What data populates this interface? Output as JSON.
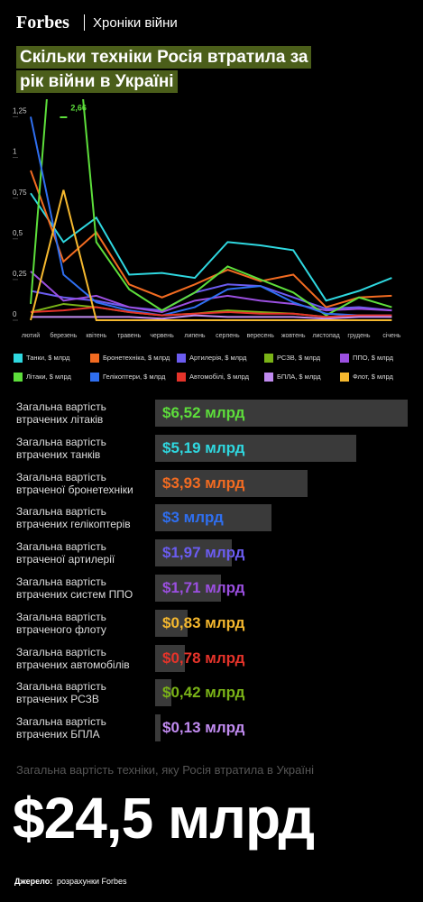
{
  "header": {
    "brand": "Forbes",
    "section": "Хроніки війни",
    "title": "Скільки техніки Росія втратила за рік війни в Україні"
  },
  "chart_data": [
    {
      "type": "line",
      "categories": [
        "лютий",
        "березень",
        "квітень",
        "травень",
        "червень",
        "липень",
        "серпень",
        "вересень",
        "жовтень",
        "листопад",
        "грудень",
        "січень"
      ],
      "ylim": [
        0,
        1.33
      ],
      "yticks": [
        0,
        {
          "value": 0.25,
          "label": "0,25"
        },
        {
          "value": 0.5,
          "label": "0,5"
        },
        {
          "value": 0.75,
          "label": "0,75"
        },
        1,
        {
          "value": 1.25,
          "label": "1,25"
        }
      ],
      "annotation": "2,66",
      "series": [
        {
          "name": "Танки, $ млрд",
          "color": "#2fd8e0",
          "values": [
            0.78,
            0.48,
            0.63,
            0.28,
            0.29,
            0.26,
            0.48,
            0.46,
            0.43,
            0.12,
            0.18,
            0.26
          ]
        },
        {
          "name": "Бронетехніка, $ млрд",
          "color": "#f26b21",
          "values": [
            0.92,
            0.36,
            0.54,
            0.22,
            0.14,
            0.22,
            0.31,
            0.24,
            0.28,
            0.08,
            0.14,
            0.15
          ]
        },
        {
          "name": "Артилерія, $ млрд",
          "color": "#6b5cf0",
          "values": [
            0.18,
            0.14,
            0.12,
            0.08,
            0.06,
            0.17,
            0.22,
            0.21,
            0.14,
            0.07,
            0.08,
            0.06
          ]
        },
        {
          "name": "РСЗВ, $ млрд",
          "color": "#7ab317",
          "values": [
            0.05,
            0.1,
            0.08,
            0.05,
            0.03,
            0.04,
            0.06,
            0.05,
            0.04,
            0.02,
            0.03,
            0.02
          ]
        },
        {
          "name": "ППО, $ млрд",
          "color": "#9b4fe0",
          "values": [
            0.3,
            0.12,
            0.15,
            0.08,
            0.05,
            0.12,
            0.15,
            0.12,
            0.1,
            0.06,
            0.07,
            0.06
          ]
        },
        {
          "name": "Літаки, $ млрд",
          "color": "#5dde3b",
          "values": [
            0.1,
            2.66,
            0.48,
            0.19,
            0.06,
            0.17,
            0.33,
            0.25,
            0.17,
            0.03,
            0.14,
            0.08
          ]
        },
        {
          "name": "Гелікоптери, $ млрд",
          "color": "#2f6ff0",
          "values": [
            1.25,
            0.28,
            0.11,
            0.06,
            0.03,
            0.08,
            0.19,
            0.21,
            0.11,
            0.04,
            0.03,
            0.03
          ]
        },
        {
          "name": "Автомобілі, $ млрд",
          "color": "#e5332a",
          "values": [
            0.05,
            0.06,
            0.08,
            0.05,
            0.03,
            0.04,
            0.05,
            0.04,
            0.04,
            0.02,
            0.03,
            0.03
          ]
        },
        {
          "name": "БПЛА, $ млрд",
          "color": "#c18bf0",
          "values": [
            0.02,
            0.02,
            0.02,
            0.02,
            0.01,
            0.03,
            0.02,
            0.02,
            0.02,
            0.01,
            0.02,
            0.02
          ]
        },
        {
          "name": "Флот, $ млрд",
          "color": "#f5b82e",
          "values": [
            0,
            0.8,
            0,
            0,
            0,
            0,
            0,
            0,
            0,
            0,
            0,
            0
          ]
        }
      ]
    },
    {
      "type": "bar",
      "orientation": "horizontal",
      "categories": [
        "Загальна вартість втрачених літаків",
        "Загальна вартість втрачених танків",
        "Загальна вартість втраченої бронетехніки",
        "Загальна вартість втрачених гелікоптерів",
        "Загальна вартість втраченої артилерії",
        "Загальна вартість втрачених систем ППО",
        "Загальна вартість втраченого флоту",
        "Загальна вартість втрачених автомобілів",
        "Загальна вартість втрачених РСЗВ",
        "Загальна вартість втрачених БПЛА"
      ],
      "values": [
        6.52,
        5.19,
        3.93,
        3,
        1.97,
        1.71,
        0.83,
        0.78,
        0.42,
        0.13
      ],
      "value_labels": [
        "$6,52 млрд",
        "$5,19 млрд",
        "$3,93 млрд",
        "$3 млрд",
        "$1,97 млрд",
        "$1,71 млрд",
        "$0,83 млрд",
        "$0,78 млрд",
        "$0,42 млрд",
        "$0,13 млрд"
      ],
      "color": "#3a3a3a",
      "label_colors": [
        "#5dde3b",
        "#2fd8e0",
        "#f26b21",
        "#2f6ff0",
        "#6b5cf0",
        "#9b4fe0",
        "#f5b82e",
        "#e5332a",
        "#7ab317",
        "#c18bf0"
      ]
    }
  ],
  "footer": {
    "total_caption": "Загальна вартість техніки, яку Росія втратила в Україні",
    "total": "$24,5 млрд",
    "source_label": "Джерело:",
    "source": "розрахунки Forbes"
  }
}
